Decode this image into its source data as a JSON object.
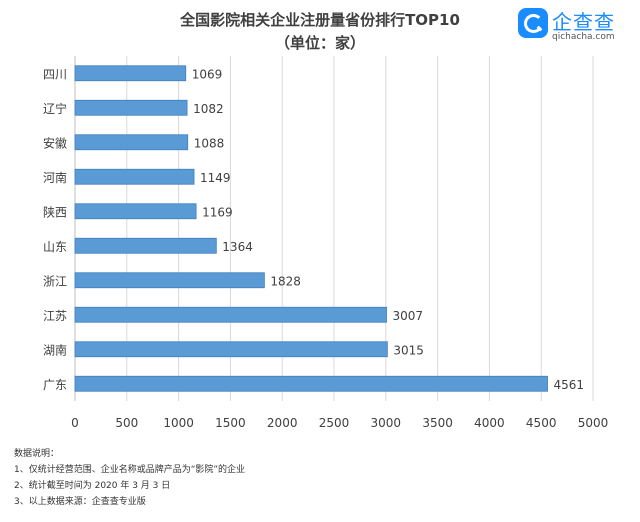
{
  "chart_data": {
    "type": "bar",
    "orientation": "horizontal",
    "title": "全国影院相关企业注册量省份排行TOP10",
    "subtitle": "（单位：家）",
    "categories": [
      "四川",
      "辽宁",
      "安徽",
      "河南",
      "陕西",
      "山东",
      "浙江",
      "江苏",
      "湖南",
      "广东"
    ],
    "values": [
      1069,
      1082,
      1088,
      1149,
      1169,
      1364,
      1828,
      3007,
      3015,
      4561
    ],
    "xlim": [
      0,
      5000
    ],
    "xticks": [
      0,
      500,
      1000,
      1500,
      2000,
      2500,
      3000,
      3500,
      4000,
      4500,
      5000
    ],
    "grid": true,
    "bar_color": "#5b9bd5"
  },
  "logo": {
    "name": "企查查",
    "url": "qichacha.com"
  },
  "notes": {
    "heading": "数据说明：",
    "items": [
      "1、仅统计经营范围、企业名称或品牌产品为“影院”的企业",
      "2、统计截至时间为 2020 年 3 月 3 日",
      "3、以上数据来源：企查查专业版"
    ]
  }
}
